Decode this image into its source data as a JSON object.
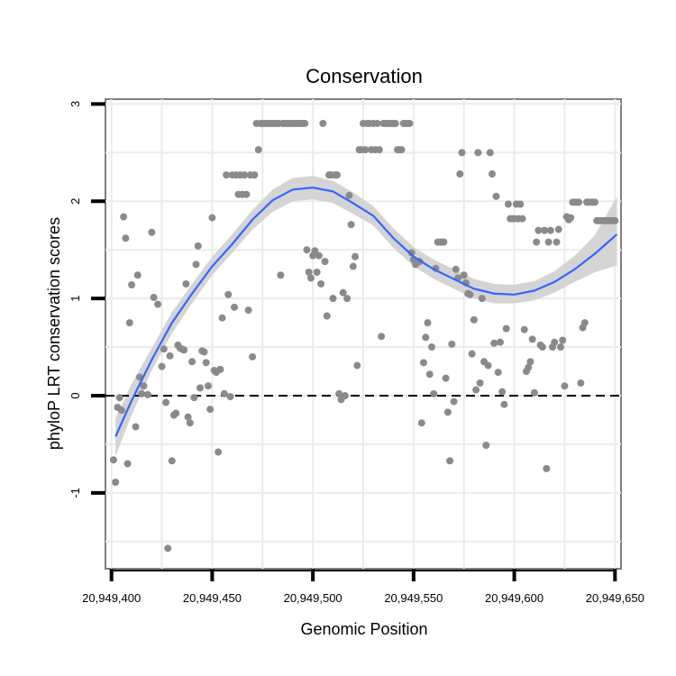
{
  "chart_data": {
    "type": "scatter",
    "title": "Conservation",
    "xlabel": "Genomic Position",
    "ylabel": "phyloP LRT conservation scores",
    "xlim": [
      20949397,
      20949653
    ],
    "ylim": [
      -1.78,
      3.05
    ],
    "x_ticks": [
      20949400,
      20949450,
      20949500,
      20949550,
      20949600,
      20949650
    ],
    "x_tick_labels": [
      "20,949,400",
      "20,949,450",
      "20,949,500",
      "20,949,550",
      "20,949,600",
      "20,949,650"
    ],
    "y_ticks": [
      -1,
      0,
      1,
      2,
      3
    ],
    "y_tick_labels": [
      "-1",
      "0",
      "1",
      "2",
      "3"
    ],
    "reference_line": {
      "y": 0,
      "style": "dashed"
    },
    "colors": {
      "points": "#8a8a8a",
      "smooth_line": "#3366ff",
      "confidence_band": "#d4d4d4",
      "grid": "#ebebeb",
      "frame": "#7f7f7f"
    },
    "points": [
      {
        "x": 20949401,
        "y": -0.66
      },
      {
        "x": 20949402,
        "y": -0.89
      },
      {
        "x": 20949403,
        "y": -0.12
      },
      {
        "x": 20949404,
        "y": -0.02
      },
      {
        "x": 20949405,
        "y": -0.15
      },
      {
        "x": 20949406,
        "y": 1.84
      },
      {
        "x": 20949407,
        "y": 1.62
      },
      {
        "x": 20949408,
        "y": -0.7
      },
      {
        "x": 20949409,
        "y": 0.75
      },
      {
        "x": 20949410,
        "y": 1.14
      },
      {
        "x": 20949412,
        "y": -0.32
      },
      {
        "x": 20949413,
        "y": 1.24
      },
      {
        "x": 20949414,
        "y": 0.19
      },
      {
        "x": 20949415,
        "y": 0.02
      },
      {
        "x": 20949416,
        "y": 0.1
      },
      {
        "x": 20949418,
        "y": 0.01
      },
      {
        "x": 20949420,
        "y": 1.68
      },
      {
        "x": 20949421,
        "y": 1.01
      },
      {
        "x": 20949423,
        "y": 0.94
      },
      {
        "x": 20949425,
        "y": 0.3
      },
      {
        "x": 20949426,
        "y": 0.48
      },
      {
        "x": 20949427,
        "y": -0.07
      },
      {
        "x": 20949428,
        "y": -1.57
      },
      {
        "x": 20949429,
        "y": 0.41
      },
      {
        "x": 20949430,
        "y": -0.67
      },
      {
        "x": 20949431,
        "y": -0.2
      },
      {
        "x": 20949432,
        "y": -0.18
      },
      {
        "x": 20949433,
        "y": 0.52
      },
      {
        "x": 20949434,
        "y": 0.49
      },
      {
        "x": 20949435,
        "y": 0.48
      },
      {
        "x": 20949436,
        "y": 0.47
      },
      {
        "x": 20949437,
        "y": 1.15
      },
      {
        "x": 20949438,
        "y": -0.22
      },
      {
        "x": 20949439,
        "y": -0.28
      },
      {
        "x": 20949440,
        "y": 0.35
      },
      {
        "x": 20949441,
        "y": -0.02
      },
      {
        "x": 20949442,
        "y": 1.35
      },
      {
        "x": 20949443,
        "y": 1.54
      },
      {
        "x": 20949444,
        "y": 0.08
      },
      {
        "x": 20949445,
        "y": 0.46
      },
      {
        "x": 20949446,
        "y": 0.45
      },
      {
        "x": 20949447,
        "y": 0.34
      },
      {
        "x": 20949448,
        "y": 0.1
      },
      {
        "x": 20949449,
        "y": -0.14
      },
      {
        "x": 20949450,
        "y": 1.83
      },
      {
        "x": 20949451,
        "y": 0.26
      },
      {
        "x": 20949452,
        "y": 0.24
      },
      {
        "x": 20949453,
        "y": -0.58
      },
      {
        "x": 20949454,
        "y": 0.27
      },
      {
        "x": 20949455,
        "y": 0.8
      },
      {
        "x": 20949456,
        "y": 0.02
      },
      {
        "x": 20949457,
        "y": 2.27
      },
      {
        "x": 20949458,
        "y": 1.04
      },
      {
        "x": 20949459,
        "y": -0.01
      },
      {
        "x": 20949460,
        "y": 2.27
      },
      {
        "x": 20949461,
        "y": 0.91
      },
      {
        "x": 20949462,
        "y": 2.27
      },
      {
        "x": 20949463,
        "y": 2.07
      },
      {
        "x": 20949464,
        "y": 2.27
      },
      {
        "x": 20949465,
        "y": 2.07
      },
      {
        "x": 20949466,
        "y": 2.27
      },
      {
        "x": 20949467,
        "y": 2.07
      },
      {
        "x": 20949468,
        "y": 0.88
      },
      {
        "x": 20949469,
        "y": 2.27
      },
      {
        "x": 20949470,
        "y": 0.4
      },
      {
        "x": 20949471,
        "y": 2.27
      },
      {
        "x": 20949472,
        "y": 2.8
      },
      {
        "x": 20949473,
        "y": 2.53
      },
      {
        "x": 20949474,
        "y": 2.8
      },
      {
        "x": 20949475,
        "y": 2.8
      },
      {
        "x": 20949476,
        "y": 2.8
      },
      {
        "x": 20949477,
        "y": 2.8
      },
      {
        "x": 20949478,
        "y": 2.8
      },
      {
        "x": 20949479,
        "y": 2.8
      },
      {
        "x": 20949480,
        "y": 2.8
      },
      {
        "x": 20949481,
        "y": 2.8
      },
      {
        "x": 20949482,
        "y": 2.8
      },
      {
        "x": 20949483,
        "y": 2.8
      },
      {
        "x": 20949484,
        "y": 1.24
      },
      {
        "x": 20949485,
        "y": 2.8
      },
      {
        "x": 20949486,
        "y": 2.8
      },
      {
        "x": 20949487,
        "y": 2.8
      },
      {
        "x": 20949488,
        "y": 2.8
      },
      {
        "x": 20949489,
        "y": 2.8
      },
      {
        "x": 20949490,
        "y": 2.8
      },
      {
        "x": 20949491,
        "y": 2.8
      },
      {
        "x": 20949492,
        "y": 2.8
      },
      {
        "x": 20949493,
        "y": 2.8
      },
      {
        "x": 20949494,
        "y": 2.8
      },
      {
        "x": 20949495,
        "y": 2.8
      },
      {
        "x": 20949496,
        "y": 2.8
      },
      {
        "x": 20949497,
        "y": 1.5
      },
      {
        "x": 20949498,
        "y": 1.27
      },
      {
        "x": 20949499,
        "y": 1.21
      },
      {
        "x": 20949500,
        "y": 1.44
      },
      {
        "x": 20949501,
        "y": 1.49
      },
      {
        "x": 20949502,
        "y": 1.27
      },
      {
        "x": 20949503,
        "y": 1.44
      },
      {
        "x": 20949504,
        "y": 1.15
      },
      {
        "x": 20949505,
        "y": 2.8
      },
      {
        "x": 20949506,
        "y": 1.38
      },
      {
        "x": 20949507,
        "y": 0.82
      },
      {
        "x": 20949508,
        "y": 2.27
      },
      {
        "x": 20949509,
        "y": 2.27
      },
      {
        "x": 20949510,
        "y": 1.0
      },
      {
        "x": 20949511,
        "y": 2.27
      },
      {
        "x": 20949512,
        "y": 2.27
      },
      {
        "x": 20949513,
        "y": 0.02
      },
      {
        "x": 20949514,
        "y": -0.04
      },
      {
        "x": 20949515,
        "y": 1.06
      },
      {
        "x": 20949516,
        "y": 0.0
      },
      {
        "x": 20949517,
        "y": 1.0
      },
      {
        "x": 20949518,
        "y": 2.06
      },
      {
        "x": 20949519,
        "y": 1.76
      },
      {
        "x": 20949520,
        "y": 1.33
      },
      {
        "x": 20949521,
        "y": 1.43
      },
      {
        "x": 20949522,
        "y": 0.31
      },
      {
        "x": 20949523,
        "y": 2.53
      },
      {
        "x": 20949524,
        "y": 2.53
      },
      {
        "x": 20949525,
        "y": 2.8
      },
      {
        "x": 20949526,
        "y": 2.53
      },
      {
        "x": 20949527,
        "y": 2.8
      },
      {
        "x": 20949528,
        "y": 2.8
      },
      {
        "x": 20949529,
        "y": 2.53
      },
      {
        "x": 20949530,
        "y": 2.8
      },
      {
        "x": 20949531,
        "y": 2.53
      },
      {
        "x": 20949532,
        "y": 2.8
      },
      {
        "x": 20949533,
        "y": 2.53
      },
      {
        "x": 20949534,
        "y": 0.61
      },
      {
        "x": 20949535,
        "y": 2.8
      },
      {
        "x": 20949536,
        "y": 2.8
      },
      {
        "x": 20949537,
        "y": 2.8
      },
      {
        "x": 20949538,
        "y": 2.8
      },
      {
        "x": 20949539,
        "y": 2.8
      },
      {
        "x": 20949540,
        "y": 2.8
      },
      {
        "x": 20949541,
        "y": 2.8
      },
      {
        "x": 20949542,
        "y": 2.53
      },
      {
        "x": 20949543,
        "y": 2.53
      },
      {
        "x": 20949544,
        "y": 2.53
      },
      {
        "x": 20949545,
        "y": 2.8
      },
      {
        "x": 20949546,
        "y": 2.8
      },
      {
        "x": 20949547,
        "y": 2.8
      },
      {
        "x": 20949548,
        "y": 2.8
      },
      {
        "x": 20949549,
        "y": 1.47
      },
      {
        "x": 20949550,
        "y": 1.4
      },
      {
        "x": 20949551,
        "y": 1.35
      },
      {
        "x": 20949552,
        "y": 1.38
      },
      {
        "x": 20949553,
        "y": 1.38
      },
      {
        "x": 20949554,
        "y": -0.28
      },
      {
        "x": 20949555,
        "y": 0.34
      },
      {
        "x": 20949556,
        "y": 0.6
      },
      {
        "x": 20949557,
        "y": 0.75
      },
      {
        "x": 20949558,
        "y": 0.22
      },
      {
        "x": 20949559,
        "y": 0.5
      },
      {
        "x": 20949560,
        "y": 0.02
      },
      {
        "x": 20949561,
        "y": 1.31
      },
      {
        "x": 20949562,
        "y": 1.58
      },
      {
        "x": 20949563,
        "y": 1.58
      },
      {
        "x": 20949564,
        "y": 1.58
      },
      {
        "x": 20949565,
        "y": 1.58
      },
      {
        "x": 20949566,
        "y": 0.18
      },
      {
        "x": 20949567,
        "y": -0.17
      },
      {
        "x": 20949568,
        "y": -0.67
      },
      {
        "x": 20949569,
        "y": 0.53
      },
      {
        "x": 20949570,
        "y": -0.06
      },
      {
        "x": 20949571,
        "y": 1.3
      },
      {
        "x": 20949572,
        "y": 1.21
      },
      {
        "x": 20949573,
        "y": 2.28
      },
      {
        "x": 20949574,
        "y": 2.5
      },
      {
        "x": 20949575,
        "y": 1.24
      },
      {
        "x": 20949576,
        "y": 1.16
      },
      {
        "x": 20949577,
        "y": 1.05
      },
      {
        "x": 20949578,
        "y": 1.04
      },
      {
        "x": 20949579,
        "y": 0.43
      },
      {
        "x": 20949580,
        "y": 0.78
      },
      {
        "x": 20949581,
        "y": 0.06
      },
      {
        "x": 20949582,
        "y": 2.5
      },
      {
        "x": 20949583,
        "y": 0.13
      },
      {
        "x": 20949584,
        "y": 1.0
      },
      {
        "x": 20949585,
        "y": 0.35
      },
      {
        "x": 20949586,
        "y": -0.51
      },
      {
        "x": 20949587,
        "y": 0.31
      },
      {
        "x": 20949588,
        "y": 2.5
      },
      {
        "x": 20949589,
        "y": 2.28
      },
      {
        "x": 20949590,
        "y": 0.54
      },
      {
        "x": 20949591,
        "y": 2.05
      },
      {
        "x": 20949592,
        "y": 0.24
      },
      {
        "x": 20949593,
        "y": 0.55
      },
      {
        "x": 20949594,
        "y": 0.04
      },
      {
        "x": 20949595,
        "y": -0.09
      },
      {
        "x": 20949596,
        "y": 0.69
      },
      {
        "x": 20949597,
        "y": 1.97
      },
      {
        "x": 20949598,
        "y": 1.82
      },
      {
        "x": 20949599,
        "y": 1.82
      },
      {
        "x": 20949600,
        "y": 1.82
      },
      {
        "x": 20949601,
        "y": 1.97
      },
      {
        "x": 20949602,
        "y": 1.82
      },
      {
        "x": 20949603,
        "y": 1.97
      },
      {
        "x": 20949604,
        "y": 1.82
      },
      {
        "x": 20949605,
        "y": 0.68
      },
      {
        "x": 20949606,
        "y": 0.25
      },
      {
        "x": 20949607,
        "y": 0.29
      },
      {
        "x": 20949608,
        "y": 0.35
      },
      {
        "x": 20949609,
        "y": 0.58
      },
      {
        "x": 20949610,
        "y": 0.03
      },
      {
        "x": 20949611,
        "y": 1.58
      },
      {
        "x": 20949612,
        "y": 1.7
      },
      {
        "x": 20949613,
        "y": 0.52
      },
      {
        "x": 20949614,
        "y": 0.5
      },
      {
        "x": 20949615,
        "y": 1.7
      },
      {
        "x": 20949616,
        "y": -0.75
      },
      {
        "x": 20949617,
        "y": 1.58
      },
      {
        "x": 20949618,
        "y": 1.7
      },
      {
        "x": 20949619,
        "y": 0.5
      },
      {
        "x": 20949620,
        "y": 0.55
      },
      {
        "x": 20949621,
        "y": 1.58
      },
      {
        "x": 20949622,
        "y": 1.71
      },
      {
        "x": 20949623,
        "y": 0.5
      },
      {
        "x": 20949624,
        "y": 0.57
      },
      {
        "x": 20949625,
        "y": 0.1
      },
      {
        "x": 20949626,
        "y": 1.84
      },
      {
        "x": 20949627,
        "y": 1.81
      },
      {
        "x": 20949628,
        "y": 1.83
      },
      {
        "x": 20949629,
        "y": 1.99
      },
      {
        "x": 20949630,
        "y": 1.99
      },
      {
        "x": 20949631,
        "y": 1.99
      },
      {
        "x": 20949632,
        "y": 1.99
      },
      {
        "x": 20949633,
        "y": 0.13
      },
      {
        "x": 20949634,
        "y": 0.7
      },
      {
        "x": 20949635,
        "y": 0.75
      },
      {
        "x": 20949636,
        "y": 1.99
      },
      {
        "x": 20949637,
        "y": 1.99
      },
      {
        "x": 20949638,
        "y": 1.99
      },
      {
        "x": 20949639,
        "y": 1.99
      },
      {
        "x": 20949640,
        "y": 1.99
      },
      {
        "x": 20949641,
        "y": 1.8
      },
      {
        "x": 20949642,
        "y": 1.8
      },
      {
        "x": 20949643,
        "y": 1.8
      },
      {
        "x": 20949644,
        "y": 1.8
      },
      {
        "x": 20949645,
        "y": 1.8
      },
      {
        "x": 20949646,
        "y": 1.8
      },
      {
        "x": 20949647,
        "y": 1.8
      },
      {
        "x": 20949648,
        "y": 1.8
      },
      {
        "x": 20949649,
        "y": 1.8
      },
      {
        "x": 20949650,
        "y": 1.8
      }
    ],
    "smooth": [
      {
        "x": 20949402,
        "y": -0.42,
        "lo": -0.62,
        "hi": -0.23
      },
      {
        "x": 20949410,
        "y": -0.05,
        "lo": -0.2,
        "hi": 0.12
      },
      {
        "x": 20949420,
        "y": 0.37,
        "lo": 0.26,
        "hi": 0.49
      },
      {
        "x": 20949430,
        "y": 0.75,
        "lo": 0.64,
        "hi": 0.86
      },
      {
        "x": 20949440,
        "y": 1.05,
        "lo": 0.95,
        "hi": 1.15
      },
      {
        "x": 20949450,
        "y": 1.33,
        "lo": 1.24,
        "hi": 1.43
      },
      {
        "x": 20949460,
        "y": 1.56,
        "lo": 1.47,
        "hi": 1.66
      },
      {
        "x": 20949470,
        "y": 1.81,
        "lo": 1.71,
        "hi": 1.91
      },
      {
        "x": 20949480,
        "y": 2.01,
        "lo": 1.89,
        "hi": 2.12
      },
      {
        "x": 20949490,
        "y": 2.12,
        "lo": 2.0,
        "hi": 2.24
      },
      {
        "x": 20949500,
        "y": 2.14,
        "lo": 2.02,
        "hi": 2.26
      },
      {
        "x": 20949510,
        "y": 2.1,
        "lo": 1.98,
        "hi": 2.21
      },
      {
        "x": 20949520,
        "y": 1.98,
        "lo": 1.87,
        "hi": 2.09
      },
      {
        "x": 20949530,
        "y": 1.85,
        "lo": 1.75,
        "hi": 1.95
      },
      {
        "x": 20949540,
        "y": 1.62,
        "lo": 1.52,
        "hi": 1.72
      },
      {
        "x": 20949550,
        "y": 1.43,
        "lo": 1.33,
        "hi": 1.53
      },
      {
        "x": 20949560,
        "y": 1.3,
        "lo": 1.2,
        "hi": 1.4
      },
      {
        "x": 20949570,
        "y": 1.2,
        "lo": 1.1,
        "hi": 1.3
      },
      {
        "x": 20949580,
        "y": 1.1,
        "lo": 1.0,
        "hi": 1.2
      },
      {
        "x": 20949590,
        "y": 1.05,
        "lo": 0.95,
        "hi": 1.15
      },
      {
        "x": 20949600,
        "y": 1.04,
        "lo": 0.95,
        "hi": 1.14
      },
      {
        "x": 20949610,
        "y": 1.08,
        "lo": 0.98,
        "hi": 1.18
      },
      {
        "x": 20949620,
        "y": 1.17,
        "lo": 1.06,
        "hi": 1.28
      },
      {
        "x": 20949630,
        "y": 1.3,
        "lo": 1.17,
        "hi": 1.44
      },
      {
        "x": 20949640,
        "y": 1.46,
        "lo": 1.27,
        "hi": 1.65
      },
      {
        "x": 20949651,
        "y": 1.66,
        "lo": 1.34,
        "hi": 2.05
      }
    ]
  }
}
